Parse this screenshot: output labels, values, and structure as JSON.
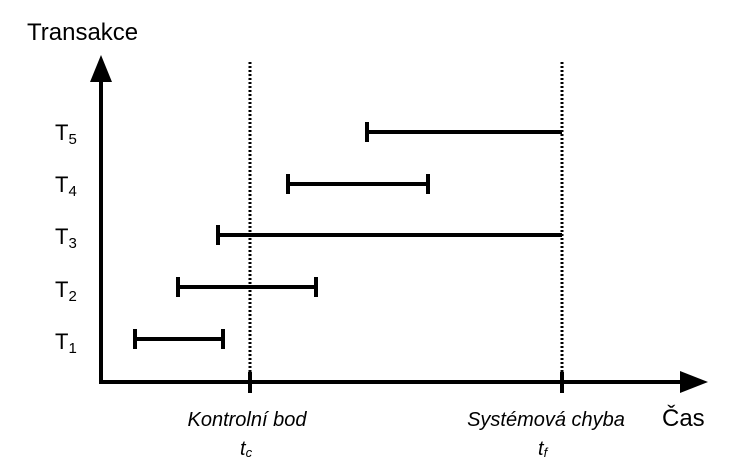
{
  "diagram": {
    "y_axis_title": "Transakce",
    "x_axis_title": "Čas",
    "colors": {
      "ink": "#000000",
      "background": "#ffffff"
    },
    "markers": [
      {
        "id": "checkpoint",
        "label": "Kontrolní bod",
        "symbol": "t",
        "symbol_sub": "c"
      },
      {
        "id": "failure",
        "label": "Systémová chyba",
        "symbol": "t",
        "symbol_sub": "f"
      }
    ],
    "transactions": [
      {
        "letter": "T",
        "index": "1"
      },
      {
        "letter": "T",
        "index": "2"
      },
      {
        "letter": "T",
        "index": "3"
      },
      {
        "letter": "T",
        "index": "4"
      },
      {
        "letter": "T",
        "index": "5"
      }
    ]
  }
}
